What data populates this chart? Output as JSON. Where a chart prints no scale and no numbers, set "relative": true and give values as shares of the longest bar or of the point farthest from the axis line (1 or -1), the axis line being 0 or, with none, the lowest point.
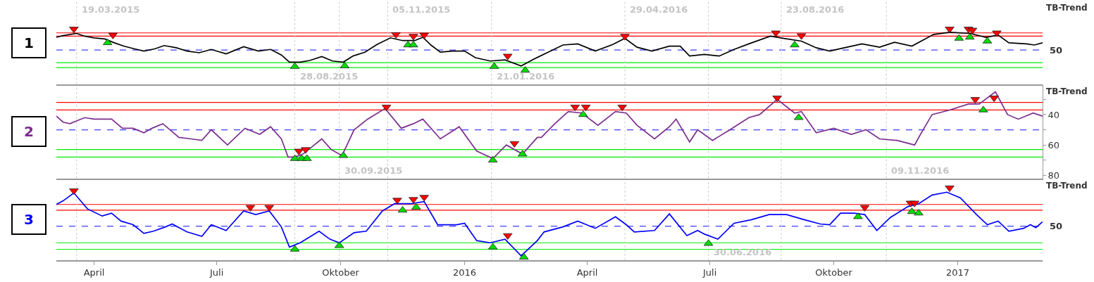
{
  "chart_data": [
    {
      "type": "line",
      "ylabel": "TB-Trend",
      "annotations": [
        "1",
        "50"
      ],
      "relative": true,
      "xlim": [
        "2015-03-04",
        "2017-03-05"
      ],
      "tick_labels": false,
      "series": [
        {
          "color": "#000000",
          "x": [
            "2015-03-04",
            "2015-03-09",
            "2015-03-19",
            "2015-03-25",
            "2015-04-01",
            "2015-04-09",
            "2015-04-16",
            "2015-04-23",
            "2015-05-01",
            "2015-05-08",
            "2015-05-16",
            "2015-05-23",
            "2015-06-01",
            "2015-06-09",
            "2015-06-18",
            "2015-06-27",
            "2015-07-08",
            "2015-07-21",
            "2015-08-01",
            "2015-08-10",
            "2015-08-18",
            "2015-08-24",
            "2015-09-01",
            "2015-09-08",
            "2015-09-17",
            "2015-09-25",
            "2015-10-03",
            "2015-10-10",
            "2015-10-19",
            "2015-10-28",
            "2015-11-07",
            "2015-11-16",
            "2015-11-25",
            "2015-12-01",
            "2015-12-07",
            "2015-12-14",
            "2015-12-23",
            "2016-01-01",
            "2016-01-09",
            "2016-01-20",
            "2016-01-31",
            "2016-02-12",
            "2016-02-21",
            "2016-03-03",
            "2016-03-14",
            "2016-03-25",
            "2016-04-07",
            "2016-04-20",
            "2016-04-29",
            "2016-05-08",
            "2016-05-19",
            "2016-06-01",
            "2016-06-09",
            "2016-06-16",
            "2016-06-27",
            "2016-07-08",
            "2016-07-19",
            "2016-07-31",
            "2016-08-15",
            "2016-08-25",
            "2016-09-07",
            "2016-09-18",
            "2016-09-28",
            "2016-10-09",
            "2016-10-22",
            "2016-11-04",
            "2016-11-15",
            "2016-11-28",
            "2016-12-14",
            "2016-12-26",
            "2017-01-10",
            "2017-01-22",
            "2017-01-31",
            "2017-02-08",
            "2017-02-21",
            "2017-02-27",
            "2017-03-05"
          ],
          "values": [
            0.85,
            0.88,
            0.92,
            0.87,
            0.84,
            0.82,
            0.75,
            0.69,
            0.64,
            0.6,
            0.64,
            0.7,
            0.66,
            0.6,
            0.57,
            0.63,
            0.55,
            0.68,
            0.6,
            0.63,
            0.53,
            0.4,
            0.4,
            0.43,
            0.5,
            0.42,
            0.4,
            0.51,
            0.58,
            0.72,
            0.84,
            0.79,
            0.79,
            0.85,
            0.71,
            0.58,
            0.6,
            0.6,
            0.48,
            0.42,
            0.44,
            0.33,
            0.45,
            0.58,
            0.71,
            0.73,
            0.6,
            0.72,
            0.83,
            0.67,
            0.6,
            0.69,
            0.69,
            0.51,
            0.54,
            0.51,
            0.63,
            0.74,
            0.87,
            0.83,
            0.78,
            0.66,
            0.6,
            0.66,
            0.73,
            0.67,
            0.76,
            0.69,
            0.9,
            0.94,
            0.92,
            0.85,
            0.89,
            0.75,
            0.73,
            0.71,
            0.75
          ]
        },
        {
          "type": "scatter",
          "marker": "triangle-down",
          "color": "#ff0000",
          "x": [
            "2015-03-17",
            "2015-04-15",
            "2015-11-11",
            "2015-11-24",
            "2015-12-02",
            "2016-02-02",
            "2016-04-29",
            "2016-08-19",
            "2016-09-07",
            "2016-12-26",
            "2017-01-09",
            "2017-01-12",
            "2017-01-30"
          ],
          "values": [
            1.0,
            0.89,
            0.9,
            0.87,
            0.89,
            0.51,
            0.87,
            0.93,
            0.88,
            1.0,
            1.0,
            0.98,
            0.93
          ]
        },
        {
          "type": "scatter",
          "marker": "triangle",
          "color": "#00dd00",
          "x": [
            "2015-04-11",
            "2015-08-28",
            "2015-10-04",
            "2015-11-20",
            "2015-11-24",
            "2016-01-23",
            "2016-02-15",
            "2016-09-02",
            "2017-01-02",
            "2017-01-10",
            "2017-01-23"
          ],
          "values": [
            0.75,
            0.32,
            0.33,
            0.71,
            0.71,
            0.32,
            0.25,
            0.71,
            0.83,
            0.85,
            0.78
          ]
        }
      ],
      "ref_lines": [
        {
          "axis": "y",
          "value": 0.93,
          "color": "#ff0000",
          "line_style": "solid"
        },
        {
          "axis": "y",
          "value": 0.87,
          "color": "#ff0000",
          "line_style": "solid"
        },
        {
          "axis": "y",
          "value": 0.62,
          "color": "#3f3fff",
          "line_style": "dashed"
        },
        {
          "axis": "y",
          "value": 0.39,
          "color": "#00ee00",
          "line_style": "solid"
        },
        {
          "axis": "y",
          "value": 0.3,
          "color": "#00ee00",
          "line_style": "solid"
        },
        {
          "axis": "x",
          "value": "2015-03-19",
          "color": "#cccccc",
          "line_style": "dotted",
          "label": "19.03.2015"
        },
        {
          "axis": "x",
          "value": "2015-08-28",
          "color": "#cccccc",
          "line_style": "dotted",
          "label": "28.08.2015"
        },
        {
          "axis": "x",
          "value": "2015-09-30",
          "color": "#cccccc",
          "line_style": "dotted"
        },
        {
          "axis": "x",
          "value": "2015-11-05",
          "color": "#cccccc",
          "line_style": "dotted",
          "label": "05.11.2015"
        },
        {
          "axis": "x",
          "value": "2016-01-21",
          "color": "#cccccc",
          "line_style": "dotted",
          "label": "21.01.2016"
        },
        {
          "axis": "x",
          "value": "2016-04-29",
          "color": "#cccccc",
          "line_style": "dotted",
          "label": "29.04.2016"
        },
        {
          "axis": "x",
          "value": "2016-06-30",
          "color": "#cccccc",
          "line_style": "dotted"
        },
        {
          "axis": "x",
          "value": "2016-08-23",
          "color": "#cccccc",
          "line_style": "dotted",
          "label": "23.08.2016"
        },
        {
          "axis": "x",
          "value": "2016-11-09",
          "color": "#cccccc",
          "line_style": "dotted"
        }
      ]
    },
    {
      "type": "line",
      "ylabel": "TB-Trend",
      "annotations": [
        "2"
      ],
      "xlim": [
        "2015-03-04",
        "2017-03-05"
      ],
      "ylim": [
        82,
        20.5
      ],
      "yticks": [
        {
          "value": 30,
          "label": null
        },
        40,
        {
          "value": 50,
          "label": null
        },
        60,
        {
          "value": 70,
          "label": null
        },
        80
      ],
      "tick_labels": "y",
      "series": [
        {
          "color": "#7b2d8e",
          "x": [
            "2015-03-04",
            "2015-03-09",
            "2015-03-14",
            "2015-03-25",
            "2015-04-01",
            "2015-04-14",
            "2015-04-22",
            "2015-04-30",
            "2015-05-08",
            "2015-05-14",
            "2015-05-22",
            "2015-06-03",
            "2015-06-12",
            "2015-06-20",
            "2015-06-27",
            "2015-07-09",
            "2015-07-22",
            "2015-08-02",
            "2015-08-10",
            "2015-08-18",
            "2015-08-23",
            "2015-08-28",
            "2015-09-03",
            "2015-09-10",
            "2015-09-17",
            "2015-09-24",
            "2015-10-02",
            "2015-10-11",
            "2015-10-21",
            "2015-11-03",
            "2015-11-15",
            "2015-11-24",
            "2015-12-01",
            "2015-12-14",
            "2015-12-28",
            "2016-01-10",
            "2016-01-22",
            "2016-02-01",
            "2016-02-13",
            "2016-02-24",
            "2016-02-27",
            "2016-03-08",
            "2016-03-18",
            "2016-03-28",
            "2016-04-09",
            "2016-04-22",
            "2016-04-30",
            "2016-05-08",
            "2016-05-21",
            "2016-06-01",
            "2016-06-06",
            "2016-06-16",
            "2016-06-22",
            "2016-07-03",
            "2016-07-16",
            "2016-07-30",
            "2016-08-07",
            "2016-08-20",
            "2016-09-02",
            "2016-09-07",
            "2016-09-18",
            "2016-10-01",
            "2016-10-14",
            "2016-10-25",
            "2016-11-04",
            "2016-11-17",
            "2016-11-30",
            "2016-12-05",
            "2016-12-13",
            "2016-12-26",
            "2017-01-09",
            "2017-01-17",
            "2017-01-29",
            "2017-02-07",
            "2017-02-15",
            "2017-02-26",
            "2017-03-05"
          ],
          "values": [
            41,
            45,
            46,
            42,
            43,
            43,
            49,
            49,
            52,
            49,
            46,
            55,
            56,
            57,
            50,
            60,
            49,
            53,
            48,
            56,
            68,
            68,
            66,
            61,
            56,
            63,
            67,
            50,
            43,
            36,
            49,
            46,
            43,
            56,
            48,
            64,
            69,
            60,
            66,
            55,
            55,
            46,
            38,
            39,
            47,
            38,
            39,
            47,
            56,
            48,
            43,
            58,
            50,
            57,
            50,
            42,
            40,
            30,
            39,
            38,
            52,
            49,
            53,
            50,
            56,
            57,
            60,
            52,
            40,
            37,
            33,
            33,
            25,
            40,
            43,
            39,
            41
          ]
        },
        {
          "type": "scatter",
          "marker": "triangle-down",
          "color": "#ff0000",
          "x": [
            "2015-08-31",
            "2015-09-05",
            "2015-11-04",
            "2016-02-07",
            "2016-03-23",
            "2016-03-31",
            "2016-04-27",
            "2016-08-20",
            "2017-01-14",
            "2017-01-28"
          ],
          "values": [
            64,
            63,
            35,
            59,
            35,
            35,
            35,
            29,
            30,
            29
          ]
        },
        {
          "type": "scatter",
          "marker": "triangle",
          "color": "#00dd00",
          "x": [
            "2015-08-28",
            "2015-09-02",
            "2015-09-06",
            "2015-10-03",
            "2016-01-22",
            "2016-02-13",
            "2016-03-29",
            "2016-09-05",
            "2017-01-20"
          ],
          "values": [
            69,
            69,
            69,
            67,
            70,
            66,
            40,
            42,
            37
          ]
        }
      ],
      "ref_lines": [
        {
          "axis": "y",
          "value": 32,
          "color": "#ff0000",
          "line_style": "solid"
        },
        {
          "axis": "y",
          "value": 37,
          "color": "#ff0000",
          "line_style": "solid"
        },
        {
          "axis": "y",
          "value": 50,
          "color": "#3f3fff",
          "line_style": "dashed"
        },
        {
          "axis": "y",
          "value": 63,
          "color": "#00ee00",
          "line_style": "solid"
        },
        {
          "axis": "y",
          "value": 68,
          "color": "#00ee00",
          "line_style": "solid"
        },
        {
          "axis": "x",
          "value": "2015-03-19",
          "color": "#cccccc",
          "line_style": "dotted"
        },
        {
          "axis": "x",
          "value": "2015-08-28",
          "color": "#cccccc",
          "line_style": "dotted"
        },
        {
          "axis": "x",
          "value": "2015-09-30",
          "color": "#cccccc",
          "line_style": "dotted",
          "label": "30.09.2015"
        },
        {
          "axis": "x",
          "value": "2015-11-05",
          "color": "#cccccc",
          "line_style": "dotted"
        },
        {
          "axis": "x",
          "value": "2016-01-21",
          "color": "#cccccc",
          "line_style": "dotted"
        },
        {
          "axis": "x",
          "value": "2016-04-29",
          "color": "#cccccc",
          "line_style": "dotted"
        },
        {
          "axis": "x",
          "value": "2016-06-30",
          "color": "#cccccc",
          "line_style": "dotted"
        },
        {
          "axis": "x",
          "value": "2016-08-23",
          "color": "#cccccc",
          "line_style": "dotted"
        },
        {
          "axis": "x",
          "value": "2016-11-09",
          "color": "#cccccc",
          "line_style": "dotted",
          "label": "09.11.2016"
        }
      ]
    },
    {
      "type": "line",
      "ylabel": "TB-Trend",
      "annotations": [
        "3",
        "50"
      ],
      "relative": true,
      "xlim": [
        "2015-03-04",
        "2017-03-05"
      ],
      "tick_labels": "x",
      "xticks": [
        {
          "value": "2015-04-01",
          "label": "April"
        },
        {
          "value": "2015-07-01",
          "label": "Juli"
        },
        {
          "value": "2015-10-01",
          "label": "Oktober"
        },
        {
          "value": "2016-01-01",
          "label": "2016"
        },
        {
          "value": "2016-04-01",
          "label": "April"
        },
        {
          "value": "2016-07-01",
          "label": "Juli"
        },
        {
          "value": "2016-10-01",
          "label": "Oktober"
        },
        {
          "value": "2017-01-01",
          "label": "2017"
        }
      ],
      "series": [
        {
          "color": "#0000ff",
          "x": [
            "2015-03-04",
            "2015-03-09",
            "2015-03-17",
            "2015-03-27",
            "2015-04-07",
            "2015-04-14",
            "2015-04-21",
            "2015-04-30",
            "2015-05-08",
            "2015-05-15",
            "2015-05-24",
            "2015-05-29",
            "2015-06-09",
            "2015-06-20",
            "2015-06-27",
            "2015-07-08",
            "2015-07-21",
            "2015-07-30",
            "2015-08-09",
            "2015-08-18",
            "2015-08-24",
            "2015-09-01",
            "2015-09-15",
            "2015-09-23",
            "2015-09-30",
            "2015-10-11",
            "2015-10-20",
            "2015-11-01",
            "2015-11-10",
            "2015-11-22",
            "2015-12-02",
            "2015-12-12",
            "2015-12-26",
            "2016-01-01",
            "2016-01-10",
            "2016-01-20",
            "2016-01-31",
            "2016-02-12",
            "2016-02-24",
            "2016-02-29",
            "2016-03-14",
            "2016-03-25",
            "2016-04-07",
            "2016-04-22",
            "2016-04-30",
            "2016-05-06",
            "2016-05-21",
            "2016-06-01",
            "2016-06-14",
            "2016-06-22",
            "2016-06-27",
            "2016-07-07",
            "2016-07-19",
            "2016-08-01",
            "2016-08-14",
            "2016-08-27",
            "2016-09-09",
            "2016-09-21",
            "2016-09-28",
            "2016-10-06",
            "2016-10-16",
            "2016-10-24",
            "2016-11-02",
            "2016-11-12",
            "2016-11-25",
            "2016-12-03",
            "2016-12-13",
            "2016-12-24",
            "2017-01-03",
            "2017-01-15",
            "2017-01-23",
            "2017-01-31",
            "2017-02-08",
            "2017-02-19",
            "2017-02-24",
            "2017-02-28",
            "2017-03-05"
          ],
          "values": [
            0.77,
            0.82,
            0.93,
            0.71,
            0.61,
            0.65,
            0.54,
            0.49,
            0.37,
            0.4,
            0.46,
            0.5,
            0.39,
            0.33,
            0.49,
            0.41,
            0.68,
            0.63,
            0.68,
            0.46,
            0.18,
            0.24,
            0.4,
            0.29,
            0.24,
            0.38,
            0.4,
            0.68,
            0.78,
            0.78,
            0.81,
            0.49,
            0.49,
            0.51,
            0.27,
            0.24,
            0.29,
            0.06,
            0.27,
            0.39,
            0.46,
            0.54,
            0.44,
            0.6,
            0.49,
            0.39,
            0.41,
            0.64,
            0.34,
            0.41,
            0.36,
            0.29,
            0.51,
            0.56,
            0.63,
            0.63,
            0.56,
            0.5,
            0.49,
            0.65,
            0.65,
            0.63,
            0.41,
            0.59,
            0.74,
            0.78,
            0.9,
            0.94,
            0.86,
            0.63,
            0.49,
            0.54,
            0.4,
            0.44,
            0.49,
            0.45,
            0.53
          ]
        },
        {
          "type": "scatter",
          "marker": "triangle-down",
          "color": "#ff0000",
          "x": [
            "2015-03-17",
            "2015-07-26",
            "2015-08-09",
            "2015-11-12",
            "2015-11-24",
            "2015-12-02",
            "2016-02-02",
            "2016-10-24",
            "2016-11-27",
            "2016-11-30",
            "2016-12-26"
          ],
          "values": [
            0.96,
            0.73,
            0.73,
            0.83,
            0.84,
            0.87,
            0.34,
            0.73,
            0.79,
            0.79,
            1.0
          ]
        },
        {
          "type": "scatter",
          "marker": "triangle",
          "color": "#00dd00",
          "x": [
            "2015-08-28",
            "2015-09-30",
            "2015-11-16",
            "2015-11-26",
            "2016-01-22",
            "2016-02-14",
            "2016-06-30",
            "2016-10-19",
            "2016-11-28",
            "2016-12-03"
          ],
          "values": [
            0.15,
            0.2,
            0.69,
            0.73,
            0.18,
            0.04,
            0.23,
            0.6,
            0.67,
            0.65
          ]
        }
      ],
      "ref_lines": [
        {
          "axis": "y",
          "value": 0.77,
          "color": "#ff0000",
          "line_style": "solid"
        },
        {
          "axis": "y",
          "value": 0.69,
          "color": "#ff0000",
          "line_style": "solid"
        },
        {
          "axis": "y",
          "value": 0.47,
          "color": "#3f3fff",
          "line_style": "dashed"
        },
        {
          "axis": "y",
          "value": 0.24,
          "color": "#00ee00",
          "line_style": "solid"
        },
        {
          "axis": "y",
          "value": 0.15,
          "color": "#00ee00",
          "line_style": "solid"
        },
        {
          "axis": "x",
          "value": "2015-03-19",
          "color": "#cccccc",
          "line_style": "dotted"
        },
        {
          "axis": "x",
          "value": "2015-08-28",
          "color": "#cccccc",
          "line_style": "dotted"
        },
        {
          "axis": "x",
          "value": "2015-09-30",
          "color": "#cccccc",
          "line_style": "dotted"
        },
        {
          "axis": "x",
          "value": "2015-11-05",
          "color": "#cccccc",
          "line_style": "dotted"
        },
        {
          "axis": "x",
          "value": "2016-01-21",
          "color": "#cccccc",
          "line_style": "dotted"
        },
        {
          "axis": "x",
          "value": "2016-04-29",
          "color": "#cccccc",
          "line_style": "dotted"
        },
        {
          "axis": "x",
          "value": "2016-06-30",
          "color": "#cccccc",
          "line_style": "dotted",
          "label": "30.06.2016"
        },
        {
          "axis": "x",
          "value": "2016-08-23",
          "color": "#cccccc",
          "line_style": "dotted"
        },
        {
          "axis": "x",
          "value": "2016-11-09",
          "color": "#cccccc",
          "line_style": "dotted"
        }
      ]
    }
  ]
}
